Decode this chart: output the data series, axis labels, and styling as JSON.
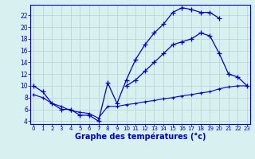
{
  "line1_x": [
    0,
    1,
    2,
    3,
    4,
    5,
    6,
    7,
    8,
    9,
    10,
    11,
    12,
    13,
    14,
    15,
    16,
    17,
    18,
    19,
    20
  ],
  "line1_y": [
    10,
    9,
    7,
    6,
    6,
    5,
    5,
    4,
    10.5,
    7,
    11,
    14.5,
    17,
    19,
    20.5,
    22.5,
    23.3,
    23.0,
    22.5,
    22.5,
    21.5
  ],
  "line2_x": [
    10,
    11,
    12,
    13,
    14,
    15,
    16,
    17,
    18,
    19,
    20,
    21,
    22,
    23
  ],
  "line2_y": [
    10,
    11,
    12.5,
    14,
    15.5,
    17,
    17.5,
    18,
    19,
    18.5,
    15.5,
    12,
    11.5,
    10
  ],
  "line3_x": [
    0,
    1,
    2,
    3,
    4,
    5,
    6,
    7,
    8,
    9,
    10,
    11,
    12,
    13,
    14,
    15,
    16,
    17,
    18,
    19,
    20,
    21,
    22,
    23
  ],
  "line3_y": [
    8.5,
    8.0,
    7.0,
    6.5,
    5.8,
    5.5,
    5.3,
    4.5,
    6.5,
    6.5,
    6.8,
    7.0,
    7.3,
    7.5,
    7.8,
    8.0,
    8.3,
    8.5,
    8.8,
    9.0,
    9.5,
    9.8,
    10.0,
    10.0
  ],
  "line_color": "#0000cc",
  "bg_color": "#d8f0f0",
  "grid_color": "#b8d0d0",
  "xlabel": "Graphe des températures (°c)",
  "xlabel_fontsize": 7,
  "xtick_labels": [
    "0",
    "1",
    "2",
    "3",
    "4",
    "5",
    "6",
    "7",
    "8",
    "9",
    "10",
    "11",
    "12",
    "13",
    "14",
    "15",
    "16",
    "17",
    "18",
    "19",
    "20",
    "21",
    "22",
    "23"
  ],
  "ytick_labels": [
    "4",
    "6",
    "8",
    "10",
    "12",
    "14",
    "16",
    "18",
    "20",
    "22"
  ],
  "ytick_vals": [
    4,
    6,
    8,
    10,
    12,
    14,
    16,
    18,
    20,
    22
  ],
  "xlim": [
    -0.3,
    23.3
  ],
  "ylim": [
    3.5,
    23.8
  ]
}
